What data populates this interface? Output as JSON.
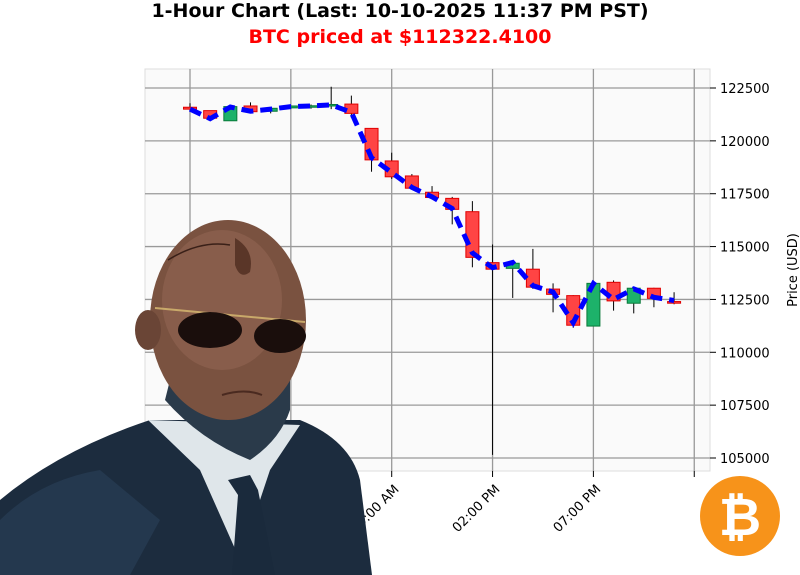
{
  "header": {
    "title": "1-Hour Chart (Last: 10-10-2025 11:37 PM PST)",
    "subtitle": "BTC priced at $112322.4100"
  },
  "colors": {
    "up": "#1db26a",
    "down": "#ff4444",
    "ma_line": "#0000ff",
    "subtitle": "#ff0000",
    "bitcoin": "#f7931a"
  },
  "icons": {
    "bitcoin_logo": "bitcoin-icon",
    "illustration": "agent-in-sunglasses-illustration"
  },
  "chart_data": {
    "type": "candlestick",
    "title": "1-Hour Chart (Last: 10-10-2025 11:37 PM PST)",
    "ylabel": "Price (USD)",
    "ylim": [
      104500,
      123000
    ],
    "yticks": [
      105000,
      107500,
      110000,
      112500,
      115000,
      117500,
      120000,
      122500
    ],
    "ytick_labels": [
      "105000",
      "107500",
      "110000",
      "112500",
      "115000",
      "117500",
      "120000",
      "122500"
    ],
    "xtick_labels": [
      {
        "index": 10,
        "label": "09:00 AM"
      },
      {
        "index": 15,
        "label": "02:00 PM"
      },
      {
        "index": 20,
        "label": "07:00 PM"
      }
    ],
    "grid": true,
    "interval": "1 hour",
    "candles": [
      {
        "o": 121590,
        "h": 121780,
        "l": 121480,
        "c": 121500
      },
      {
        "o": 121430,
        "h": 121430,
        "l": 121000,
        "c": 121070
      },
      {
        "o": 120950,
        "h": 121700,
        "l": 120950,
        "c": 121620
      },
      {
        "o": 121650,
        "h": 121820,
        "l": 121300,
        "c": 121380
      },
      {
        "o": 121400,
        "h": 121560,
        "l": 121300,
        "c": 121540
      },
      {
        "o": 121560,
        "h": 121680,
        "l": 121520,
        "c": 121650
      },
      {
        "o": 121650,
        "h": 121720,
        "l": 121520,
        "c": 121660
      },
      {
        "o": 121680,
        "h": 122560,
        "l": 121500,
        "c": 121720
      },
      {
        "o": 121740,
        "h": 122140,
        "l": 121100,
        "c": 121300
      },
      {
        "o": 120590,
        "h": 120590,
        "l": 118540,
        "c": 119100
      },
      {
        "o": 119050,
        "h": 119440,
        "l": 118200,
        "c": 118300
      },
      {
        "o": 118340,
        "h": 118430,
        "l": 117700,
        "c": 117760
      },
      {
        "o": 117570,
        "h": 117860,
        "l": 117250,
        "c": 117320
      },
      {
        "o": 117280,
        "h": 117350,
        "l": 116050,
        "c": 116760
      },
      {
        "o": 116650,
        "h": 117150,
        "l": 114020,
        "c": 114490
      },
      {
        "o": 114240,
        "h": 115100,
        "l": 105150,
        "c": 113930
      },
      {
        "o": 113970,
        "h": 114250,
        "l": 112570,
        "c": 114210
      },
      {
        "o": 113930,
        "h": 114890,
        "l": 113000,
        "c": 113080
      },
      {
        "o": 112990,
        "h": 113260,
        "l": 111890,
        "c": 112740
      },
      {
        "o": 112680,
        "h": 112700,
        "l": 111160,
        "c": 111280
      },
      {
        "o": 111240,
        "h": 113350,
        "l": 111240,
        "c": 113260
      },
      {
        "o": 113310,
        "h": 113400,
        "l": 111970,
        "c": 112430
      },
      {
        "o": 112320,
        "h": 113050,
        "l": 111840,
        "c": 113030
      },
      {
        "o": 113030,
        "h": 113050,
        "l": 112130,
        "c": 112550
      },
      {
        "o": 112400,
        "h": 112840,
        "l": 112270,
        "c": 112322
      }
    ],
    "moving_average": [
      121500,
      121050,
      121600,
      121400,
      121500,
      121620,
      121650,
      121700,
      121350,
      119200,
      118500,
      117800,
      117350,
      116800,
      114700,
      114000,
      114250,
      113150,
      112850,
      111400,
      113250,
      112500,
      113000,
      112600,
      112450
    ]
  }
}
